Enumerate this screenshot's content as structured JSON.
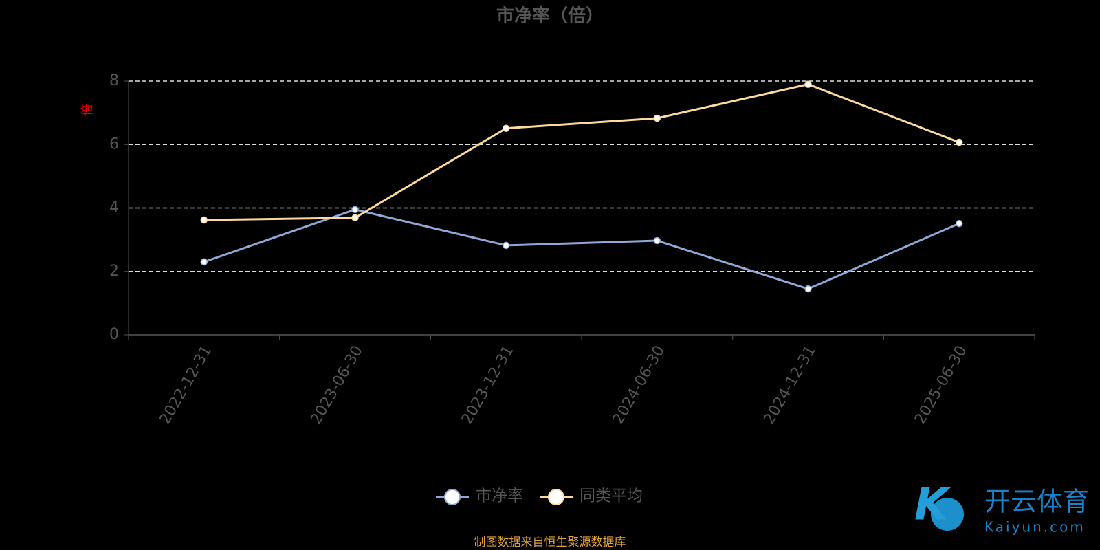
{
  "chart_data": {
    "type": "line",
    "title": "市净率（倍）",
    "y_label": "倍",
    "categories": [
      "2022-12-31",
      "2023-06-30",
      "2023-12-31",
      "2024-06-30",
      "2024-12-31",
      "2025-06-30"
    ],
    "series": [
      {
        "name": "市净率",
        "color": "#8fa8d8",
        "values": [
          2.3,
          3.95,
          2.82,
          2.97,
          1.45,
          3.51
        ]
      },
      {
        "name": "同类平均",
        "color": "#fcd9a0",
        "values": [
          3.62,
          3.69,
          6.51,
          6.83,
          7.9,
          6.07
        ]
      }
    ],
    "ylim": [
      0,
      8
    ],
    "yticks": [
      0,
      2,
      4,
      6,
      8
    ],
    "grid": true,
    "legend": "bottom",
    "source": "制图数据来自恒生聚源数据库"
  },
  "watermark": {
    "title": "开云体育",
    "subtitle": "Kaiyun.com"
  }
}
